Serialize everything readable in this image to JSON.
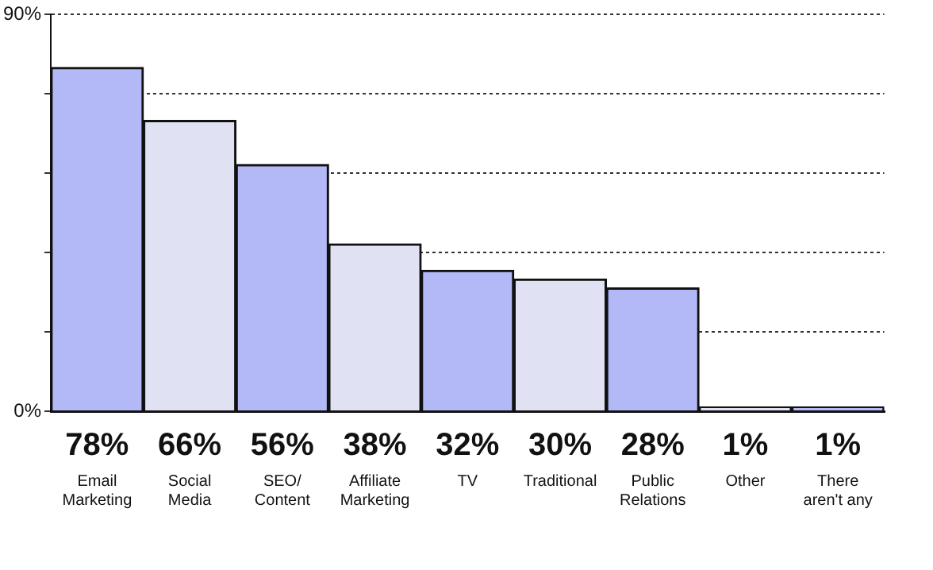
{
  "chart_data": {
    "type": "bar",
    "categories": [
      "Email\nMarketing",
      "Social\nMedia",
      "SEO/\nContent",
      "Affiliate\nMarketing",
      "TV",
      "Traditional",
      "Public\nRelations",
      "Other",
      "There\naren't any"
    ],
    "values": [
      78,
      66,
      56,
      38,
      32,
      30,
      28,
      1,
      1
    ],
    "value_labels": [
      "78%",
      "66%",
      "56%",
      "38%",
      "32%",
      "30%",
      "28%",
      "1%",
      "1%"
    ],
    "colors": [
      "#b3b8f7",
      "#e0e1f3",
      "#b3b8f7",
      "#e0e1f3",
      "#b3b8f7",
      "#e0e1f3",
      "#b3b8f7",
      "#e0e1f3",
      "#b3b8f7"
    ],
    "ylim": [
      0,
      90
    ],
    "yticks": [
      {
        "value": 0,
        "label": "0%"
      },
      {
        "value": 18,
        "label": null
      },
      {
        "value": 36,
        "label": null
      },
      {
        "value": 54,
        "label": null
      },
      {
        "value": 72,
        "label": null
      },
      {
        "value": 90,
        "label": "90%"
      }
    ],
    "grid": "y",
    "legend": false
  }
}
